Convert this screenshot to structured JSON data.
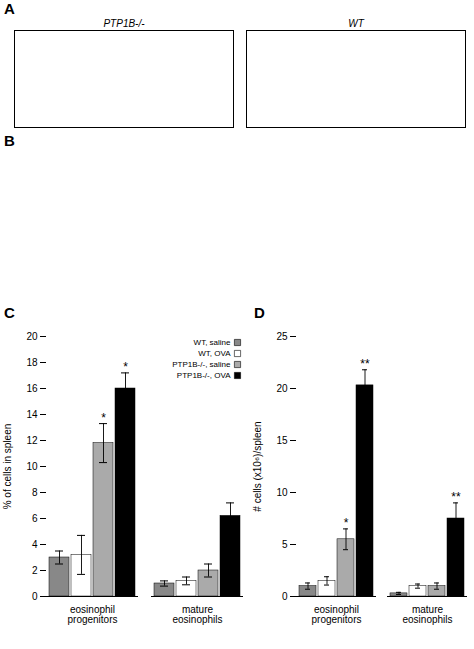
{
  "chart_data": [
    {
      "type": "placeholder",
      "title": "A",
      "annotations": [
        "PTP1B-/-",
        "WT"
      ]
    },
    {
      "type": "placeholder",
      "title": "B"
    },
    {
      "type": "bar",
      "title": "C",
      "ylabel": "% of cells in spleen",
      "categories": [
        "eosinophil\nprogenitors",
        "mature\neosinophils"
      ],
      "series": [
        {
          "name": "WT, saline",
          "color": "#888888",
          "values": [
            3.0,
            1.0
          ],
          "errors": [
            0.5,
            0.2
          ]
        },
        {
          "name": "WT, OVA",
          "color": "#ffffff",
          "values": [
            3.2,
            1.2
          ],
          "errors": [
            1.5,
            0.3
          ]
        },
        {
          "name": "PTP1B-/-, saline",
          "color": "#aaaaaa",
          "values": [
            11.8,
            2.0
          ],
          "errors": [
            1.5,
            0.5
          ]
        },
        {
          "name": "PTP1B-/-, OVA",
          "color": "#000000",
          "values": [
            16.0,
            6.2
          ],
          "errors": [
            1.2,
            1.0
          ]
        }
      ],
      "ylim": [
        0,
        20
      ],
      "yticks": [
        0,
        2,
        4,
        6,
        8,
        10,
        12,
        14,
        16,
        18,
        20
      ],
      "grid": false,
      "legend": "upper right",
      "annotations": [
        {
          "text": "*",
          "category": "eosinophil\nprogenitors",
          "series": "PTP1B-/-, saline"
        },
        {
          "text": "*",
          "category": "eosinophil\nprogenitors",
          "series": "PTP1B-/-, OVA"
        }
      ]
    },
    {
      "type": "bar",
      "title": "D",
      "ylabel": "# cells (x10⁶)/spleen",
      "categories": [
        "eosinophil\nprogenitors",
        "mature\neosinophils"
      ],
      "series": [
        {
          "name": "WT, saline",
          "color": "#888888",
          "values": [
            1.0,
            0.3
          ],
          "errors": [
            0.3,
            0.1
          ]
        },
        {
          "name": "WT, OVA",
          "color": "#ffffff",
          "values": [
            1.5,
            1.0
          ],
          "errors": [
            0.4,
            0.2
          ]
        },
        {
          "name": "PTP1B-/-, saline",
          "color": "#aaaaaa",
          "values": [
            5.5,
            1.0
          ],
          "errors": [
            1.0,
            0.3
          ]
        },
        {
          "name": "PTP1B-/-, OVA",
          "color": "#000000",
          "values": [
            20.3,
            7.5
          ],
          "errors": [
            1.5,
            1.5
          ]
        }
      ],
      "ylim": [
        0,
        25
      ],
      "yticks": [
        0,
        5,
        10,
        15,
        20,
        25
      ],
      "grid": false,
      "annotations": [
        {
          "text": "*",
          "category": "eosinophil\nprogenitors",
          "series": "PTP1B-/-, saline"
        },
        {
          "text": "**",
          "category": "eosinophil\nprogenitors",
          "series": "PTP1B-/-, OVA"
        },
        {
          "text": "**",
          "category": "mature\neosinophils",
          "series": "PTP1B-/-, OVA"
        }
      ]
    }
  ]
}
